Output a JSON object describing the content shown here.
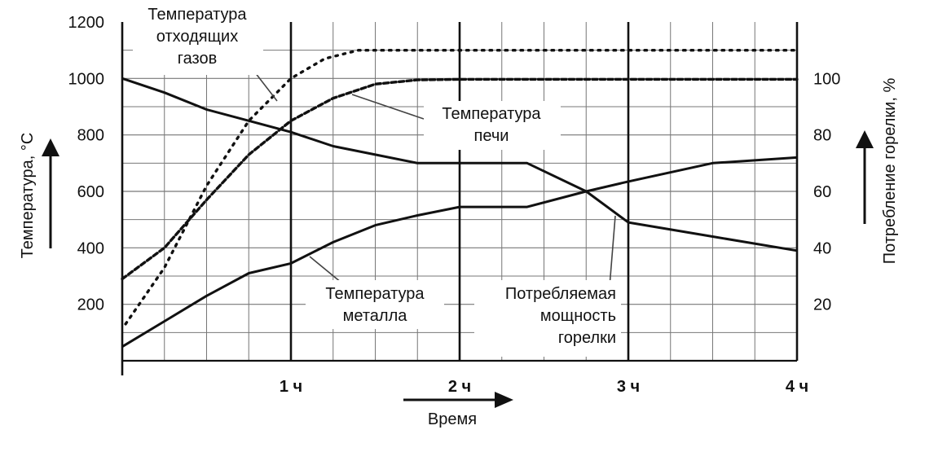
{
  "chart_data": {
    "type": "line",
    "title": "",
    "xlabel": "Время",
    "ylabel": "Температура, °C",
    "y2label": "Потребление горелки, %",
    "xlim": [
      0,
      4
    ],
    "ylim": [
      0,
      1200
    ],
    "y2lim": [
      0,
      120
    ],
    "grid": true,
    "x_ticks": [
      {
        "value": 1,
        "label": "1 ч"
      },
      {
        "value": 2,
        "label": "2 ч"
      },
      {
        "value": 3,
        "label": "3 ч"
      },
      {
        "value": 4,
        "label": "4 ч"
      }
    ],
    "y_ticks": [
      {
        "value": 200,
        "label": "200"
      },
      {
        "value": 400,
        "label": "400"
      },
      {
        "value": 600,
        "label": "600"
      },
      {
        "value": 800,
        "label": "800"
      },
      {
        "value": 1000,
        "label": "1000"
      },
      {
        "value": 1200,
        "label": "1200"
      }
    ],
    "y2_ticks": [
      {
        "value": 20,
        "label": "20"
      },
      {
        "value": 40,
        "label": "40"
      },
      {
        "value": 60,
        "label": "60"
      },
      {
        "value": 80,
        "label": "80"
      },
      {
        "value": 100,
        "label": "100"
      }
    ],
    "series": [
      {
        "key": "flue",
        "style": "dotted",
        "axis": "y",
        "x": [
          0.02,
          0.25,
          0.5,
          0.75,
          1.0,
          1.2,
          1.4,
          1.6,
          2.0,
          2.5,
          3.0,
          3.5,
          4.0
        ],
        "y": [
          130,
          330,
          620,
          850,
          1000,
          1070,
          1100,
          1100,
          1100,
          1100,
          1100,
          1100,
          1100
        ]
      },
      {
        "key": "furnace",
        "style": "dashed",
        "axis": "y",
        "x": [
          0.0,
          0.25,
          0.5,
          0.75,
          1.0,
          1.25,
          1.5,
          1.75,
          2.0,
          2.5,
          3.0,
          3.5,
          4.0
        ],
        "y": [
          290,
          400,
          570,
          730,
          850,
          930,
          980,
          995,
          997,
          997,
          997,
          997,
          997
        ]
      },
      {
        "key": "metal",
        "style": "solid",
        "axis": "y",
        "x": [
          0.0,
          0.25,
          0.5,
          0.75,
          1.0,
          1.25,
          1.5,
          1.75,
          2.0,
          2.4,
          2.75,
          3.0,
          3.5,
          4.0
        ],
        "y": [
          50,
          140,
          230,
          310,
          345,
          420,
          480,
          515,
          545,
          545,
          600,
          635,
          700,
          720
        ]
      },
      {
        "key": "burner",
        "style": "solid",
        "axis": "y2",
        "x": [
          0.0,
          0.25,
          0.5,
          0.75,
          1.0,
          1.25,
          1.5,
          1.75,
          2.0,
          2.4,
          2.75,
          3.0,
          3.5,
          4.0
        ],
        "y": [
          100,
          95,
          89,
          85,
          81,
          76,
          73,
          70,
          70,
          70,
          60,
          49,
          44,
          39
        ]
      }
    ],
    "annotations": [
      {
        "key": "flue",
        "lines": [
          "Температура",
          "отходящих",
          "газов"
        ]
      },
      {
        "key": "furnace",
        "lines": [
          "Температура",
          "печи"
        ]
      },
      {
        "key": "metal",
        "lines": [
          "Температура",
          "металла"
        ]
      },
      {
        "key": "burner",
        "lines": [
          "Потребляемая",
          "мощность",
          "горелки"
        ]
      }
    ]
  }
}
